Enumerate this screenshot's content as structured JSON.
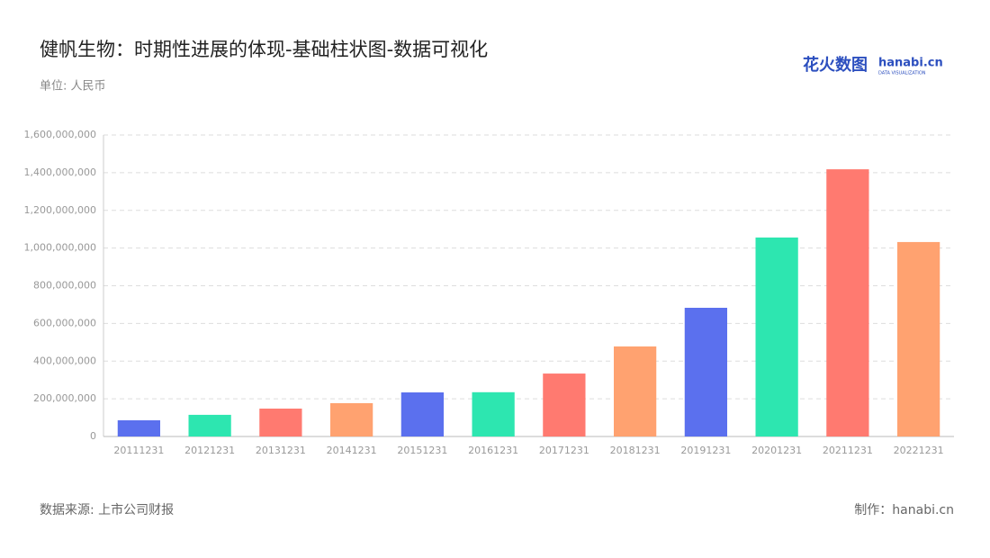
{
  "chart_data": {
    "type": "bar",
    "title": "健帆生物：时期性进展的体现-基础柱状图-数据可视化",
    "subtitle": "单位: 人民币",
    "source": "数据来源: 上市公司财报",
    "credit": "制作：hanabi.cn",
    "logo": {
      "cn": "花火数图",
      "en": "hanabi.cn",
      "tagline": "DATA VISUALIZATION"
    },
    "categories": [
      "20111231",
      "20121231",
      "20131231",
      "20141231",
      "20151231",
      "20161231",
      "20171231",
      "20181231",
      "20191231",
      "20201231",
      "20211231",
      "20221231"
    ],
    "values": [
      86000000,
      115000000,
      148000000,
      177000000,
      234000000,
      235000000,
      334000000,
      478000000,
      683000000,
      1056000000,
      1418000000,
      1032000000
    ],
    "colors": [
      "#5b70ee",
      "#2de6b0",
      "#ff7a70",
      "#ffa270",
      "#5b70ee",
      "#2de6b0",
      "#ff7a70",
      "#ffa270",
      "#5b70ee",
      "#2de6b0",
      "#ff7a70",
      "#ffa270"
    ],
    "ylim": [
      0,
      1600000000
    ],
    "yticks": [
      0,
      {
        "value": 200000000,
        "label": "200,000,000"
      },
      {
        "value": 400000000,
        "label": "400,000,000"
      },
      {
        "value": 600000000,
        "label": "600,000,000"
      },
      {
        "value": 800000000,
        "label": "800,000,000"
      },
      {
        "value": 1000000000,
        "label": "1,000,000,000"
      },
      {
        "value": 1200000000,
        "label": "1,200,000,000"
      },
      {
        "value": 1400000000,
        "label": "1,400,000,000"
      },
      {
        "value": 1600000000,
        "label": "1,600,000,000"
      }
    ],
    "grid": true
  }
}
